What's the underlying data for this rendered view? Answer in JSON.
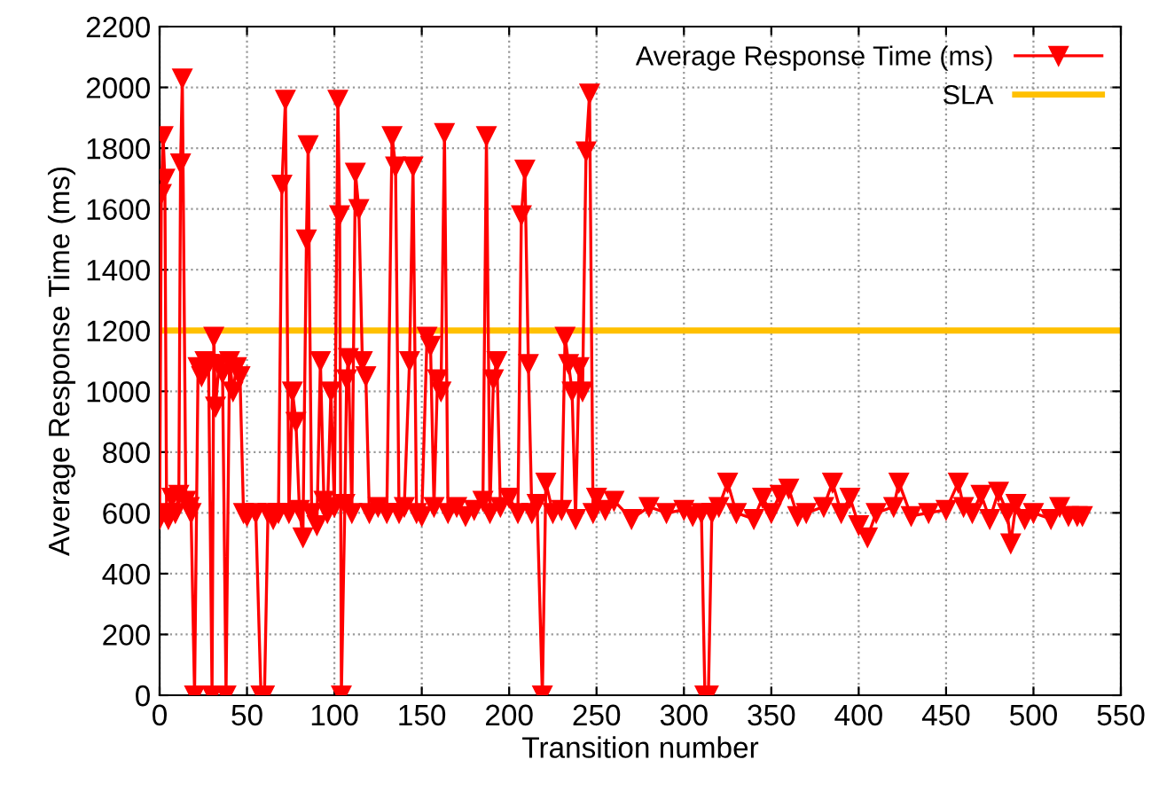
{
  "chart_data": {
    "type": "line",
    "xlabel": "Transition number",
    "ylabel": "Average Response Time (ms)",
    "x": [
      0,
      1,
      2,
      3,
      4,
      5,
      7,
      9,
      11,
      12,
      13,
      15,
      17,
      18,
      20,
      22,
      24,
      26,
      28,
      30,
      31,
      32,
      34,
      36,
      38,
      40,
      42,
      44,
      46,
      48,
      50,
      55,
      58,
      60,
      62,
      65,
      68,
      70,
      72,
      74,
      76,
      78,
      80,
      82,
      84,
      85,
      87,
      90,
      92,
      94,
      96,
      98,
      100,
      102,
      103,
      104,
      106,
      107,
      108,
      110,
      112,
      114,
      116,
      118,
      120,
      125,
      130,
      133,
      135,
      137,
      140,
      143,
      145,
      147,
      150,
      153,
      155,
      157,
      159,
      161,
      163,
      165,
      170,
      175,
      180,
      185,
      187,
      189,
      191,
      193,
      195,
      200,
      205,
      207,
      209,
      211,
      213,
      216,
      219,
      221,
      225,
      230,
      232,
      234,
      236,
      238,
      240,
      242,
      244,
      246,
      248,
      250,
      255,
      260,
      270,
      280,
      290,
      300,
      305,
      310,
      312,
      314,
      316,
      320,
      325,
      330,
      340,
      345,
      350,
      355,
      360,
      365,
      370,
      380,
      385,
      390,
      395,
      400,
      405,
      410,
      420,
      423,
      430,
      440,
      450,
      457,
      460,
      465,
      470,
      475,
      480,
      485,
      487,
      490,
      495,
      500,
      510,
      515,
      520,
      525,
      528
    ],
    "series": [
      {
        "name": "Average Response Time (ms)",
        "color": "#ff0000",
        "values": [
          580,
          1650,
          1840,
          1700,
          600,
          580,
          650,
          600,
          660,
          1750,
          2030,
          640,
          620,
          600,
          0,
          1080,
          1050,
          1100,
          1090,
          0,
          1180,
          950,
          1090,
          1060,
          0,
          1100,
          1000,
          1080,
          1050,
          600,
          590,
          600,
          0,
          0,
          600,
          580,
          600,
          1680,
          1960,
          600,
          1000,
          900,
          610,
          520,
          1500,
          1810,
          600,
          560,
          1100,
          640,
          600,
          1000,
          620,
          1960,
          1580,
          0,
          630,
          1040,
          1110,
          600,
          1720,
          1600,
          1100,
          1050,
          600,
          620,
          600,
          1840,
          1740,
          600,
          620,
          1100,
          1740,
          600,
          590,
          1180,
          1150,
          620,
          1040,
          1000,
          1850,
          600,
          620,
          590,
          610,
          640,
          1840,
          600,
          1040,
          1100,
          620,
          650,
          600,
          1580,
          1730,
          1090,
          600,
          630,
          0,
          700,
          600,
          610,
          1180,
          1090,
          1000,
          580,
          1080,
          1000,
          1790,
          1980,
          600,
          650,
          610,
          640,
          580,
          620,
          600,
          610,
          590,
          600,
          0,
          0,
          600,
          620,
          700,
          600,
          580,
          650,
          600,
          660,
          680,
          590,
          600,
          620,
          700,
          600,
          650,
          560,
          520,
          600,
          620,
          700,
          590,
          600,
          610,
          700,
          620,
          600,
          660,
          580,
          670,
          600,
          500,
          630,
          580,
          600,
          580,
          620,
          590,
          590,
          590
        ]
      }
    ],
    "ref_lines": [
      {
        "axis": "y",
        "value": 1200,
        "label": "SLA",
        "color": "#ffc000"
      }
    ],
    "xlim": [
      0,
      550
    ],
    "xticks": [
      0,
      50,
      100,
      150,
      200,
      250,
      300,
      350,
      400,
      450,
      500,
      550
    ],
    "ylim": [
      0,
      2200
    ],
    "yticks": [
      0,
      200,
      400,
      600,
      800,
      1000,
      1200,
      1400,
      1600,
      1800,
      2000,
      2200
    ],
    "grid": true,
    "legend": "top right",
    "marker": "triangle",
    "line_style": "solid"
  }
}
